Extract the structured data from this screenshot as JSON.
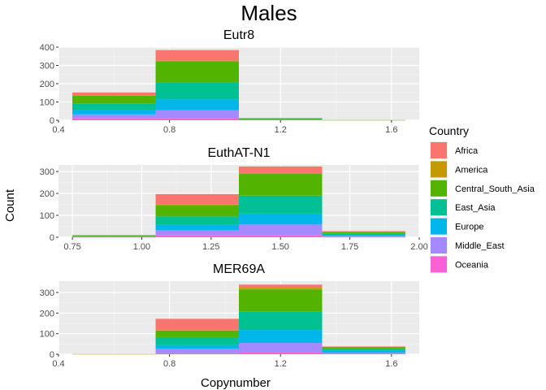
{
  "title": "Males",
  "xlabel": "Copynumber",
  "ylabel": "Count",
  "legend": {
    "title": "Country",
    "position": "right",
    "items": [
      {
        "label": "Africa",
        "color": "#F8766D"
      },
      {
        "label": "America",
        "color": "#C49A00"
      },
      {
        "label": "Central_South_Asia",
        "color": "#53B400"
      },
      {
        "label": "East_Asia",
        "color": "#00C094"
      },
      {
        "label": "Europe",
        "color": "#00B6EB"
      },
      {
        "label": "Middle_East",
        "color": "#A58AFF"
      },
      {
        "label": "Oceania",
        "color": "#FB61D7"
      }
    ]
  },
  "chart_data": [
    {
      "type": "bar",
      "stacked": true,
      "title": "Eutr8",
      "bin_width": 0.3,
      "xlim": [
        0.4,
        1.7
      ],
      "ylim": [
        0,
        400
      ],
      "xticks": [
        0.4,
        0.8,
        1.2,
        1.6
      ],
      "xtick_labels": [
        "0.4",
        "0.8",
        "1.2",
        "1.6"
      ],
      "yticks": [
        0,
        100,
        200,
        300,
        400
      ],
      "ytick_labels": [
        "0",
        "100",
        "200",
        "300",
        "400"
      ],
      "grid": true,
      "bins": [
        {
          "x": 0.6,
          "values": {
            "Oceania": 10,
            "Middle_East": 22,
            "Europe": 22,
            "East_Asia": 36,
            "Central_South_Asia": 45,
            "America": 2,
            "Africa": 15
          }
        },
        {
          "x": 0.9,
          "values": {
            "Oceania": 10,
            "Middle_East": 45,
            "Europe": 60,
            "East_Asia": 90,
            "Central_South_Asia": 118,
            "America": 3,
            "Africa": 58
          }
        },
        {
          "x": 1.2,
          "values": {
            "Oceania": 0,
            "Middle_East": 2,
            "Europe": 2,
            "East_Asia": 2,
            "Central_South_Asia": 5,
            "America": 0,
            "Africa": 1
          }
        },
        {
          "x": 1.5,
          "values": {
            "Oceania": 0,
            "Middle_East": 0,
            "Europe": 0,
            "East_Asia": 0,
            "Central_South_Asia": 1,
            "America": 0,
            "Africa": 0
          }
        }
      ]
    },
    {
      "type": "bar",
      "stacked": true,
      "title": "EuthAT-N1",
      "bin_width": 0.3,
      "xlim": [
        0.7,
        2.0
      ],
      "ylim": [
        0,
        330
      ],
      "xticks": [
        0.75,
        1.0,
        1.25,
        1.5,
        1.75,
        2.0
      ],
      "xtick_labels": [
        "0.75",
        "1.00",
        "1.25",
        "1.50",
        "1.75",
        "2.00"
      ],
      "yticks": [
        0,
        100,
        200,
        300
      ],
      "ytick_labels": [
        "0",
        "100",
        "200",
        "300"
      ],
      "grid": true,
      "bins": [
        {
          "x": 0.9,
          "values": {
            "Oceania": 1,
            "Middle_East": 2,
            "Europe": 1,
            "East_Asia": 1,
            "Central_South_Asia": 3,
            "America": 1,
            "Africa": 1
          }
        },
        {
          "x": 1.2,
          "values": {
            "Oceania": 10,
            "Middle_East": 22,
            "Europe": 25,
            "East_Asia": 38,
            "Central_South_Asia": 52,
            "America": 2,
            "Africa": 48
          }
        },
        {
          "x": 1.5,
          "values": {
            "Oceania": 10,
            "Middle_East": 48,
            "Europe": 50,
            "East_Asia": 82,
            "Central_South_Asia": 100,
            "America": 3,
            "Africa": 30
          }
        },
        {
          "x": 1.8,
          "values": {
            "Oceania": 1,
            "Middle_East": 5,
            "Europe": 5,
            "East_Asia": 5,
            "Central_South_Asia": 8,
            "America": 1,
            "Africa": 3
          }
        }
      ]
    },
    {
      "type": "bar",
      "stacked": true,
      "title": "MER69A",
      "bin_width": 0.3,
      "xlim": [
        0.4,
        1.7
      ],
      "ylim": [
        0,
        355
      ],
      "xticks": [
        0.4,
        0.8,
        1.2,
        1.6
      ],
      "xtick_labels": [
        "0.4",
        "0.8",
        "1.2",
        "1.6"
      ],
      "yticks": [
        0,
        100,
        200,
        300
      ],
      "ytick_labels": [
        "0",
        "100",
        "200",
        "300"
      ],
      "grid": true,
      "bins": [
        {
          "x": 0.6,
          "values": {
            "Oceania": 0,
            "Middle_East": 0,
            "Europe": 0,
            "East_Asia": 0,
            "Central_South_Asia": 0,
            "America": 1,
            "Africa": 0
          }
        },
        {
          "x": 0.9,
          "values": {
            "Oceania": 5,
            "Middle_East": 22,
            "Europe": 18,
            "East_Asia": 38,
            "Central_South_Asia": 32,
            "America": 2,
            "Africa": 55
          }
        },
        {
          "x": 1.2,
          "values": {
            "Oceania": 10,
            "Middle_East": 45,
            "Europe": 63,
            "East_Asia": 90,
            "Central_South_Asia": 107,
            "America": 8,
            "Africa": 15
          }
        },
        {
          "x": 1.5,
          "values": {
            "Oceania": 2,
            "Middle_East": 5,
            "Europe": 10,
            "East_Asia": 10,
            "Central_South_Asia": 8,
            "America": 1,
            "Africa": 2
          }
        }
      ]
    }
  ]
}
